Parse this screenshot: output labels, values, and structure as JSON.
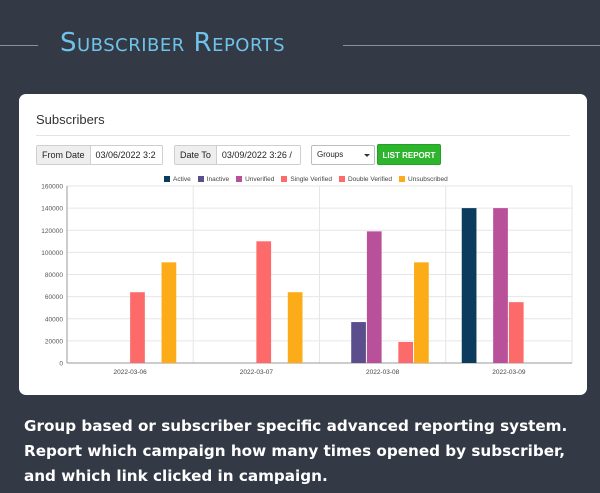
{
  "hero": {
    "title": "Subscriber Reports"
  },
  "card": {
    "title": "Subscribers",
    "from_label": "From Date",
    "from_value": "03/06/2022 3:2",
    "to_label": "Date To",
    "to_value": "03/09/2022 3:26 /",
    "groups_value": "Groups",
    "list_report_label": "LIST REPORT"
  },
  "colors": {
    "active": "#0b3c5d",
    "inactive": "#5a4f8c",
    "unverified": "#b9509a",
    "single_verified": "#fd6a6a",
    "double_verified": "#fd6a6a",
    "unsubscribed": "#fbac18"
  },
  "chart_data": {
    "type": "bar",
    "categories": [
      "2022-03-06",
      "2022-03-07",
      "2022-03-08",
      "2022-03-09"
    ],
    "ylim": [
      0,
      160000
    ],
    "yticks": [
      0,
      20000,
      40000,
      60000,
      80000,
      100000,
      120000,
      140000,
      160000
    ],
    "grid": true,
    "legend_position": "top",
    "series": [
      {
        "name": "Active",
        "color": "#0b3c5d",
        "values": [
          0,
          0,
          0,
          140000
        ]
      },
      {
        "name": "Inactive",
        "color": "#5a4f8c",
        "values": [
          0,
          0,
          37000,
          0
        ]
      },
      {
        "name": "Unverified",
        "color": "#b9509a",
        "values": [
          0,
          0,
          119000,
          140000
        ]
      },
      {
        "name": "Single Verified",
        "color": "#fd6a6a",
        "values": [
          64000,
          110000,
          0,
          55000
        ]
      },
      {
        "name": "Double Verified",
        "color": "#fd6a6a",
        "values": [
          0,
          0,
          19000,
          0
        ]
      },
      {
        "name": "Unsubscribed",
        "color": "#fbac18",
        "values": [
          91000,
          64000,
          91000,
          0
        ]
      }
    ]
  },
  "caption": {
    "line1": "Group based or subscriber specific advanced reporting system.",
    "line2": "Report which campaign how many times opened by subscriber,",
    "line3": "and which link clicked in campaign."
  }
}
